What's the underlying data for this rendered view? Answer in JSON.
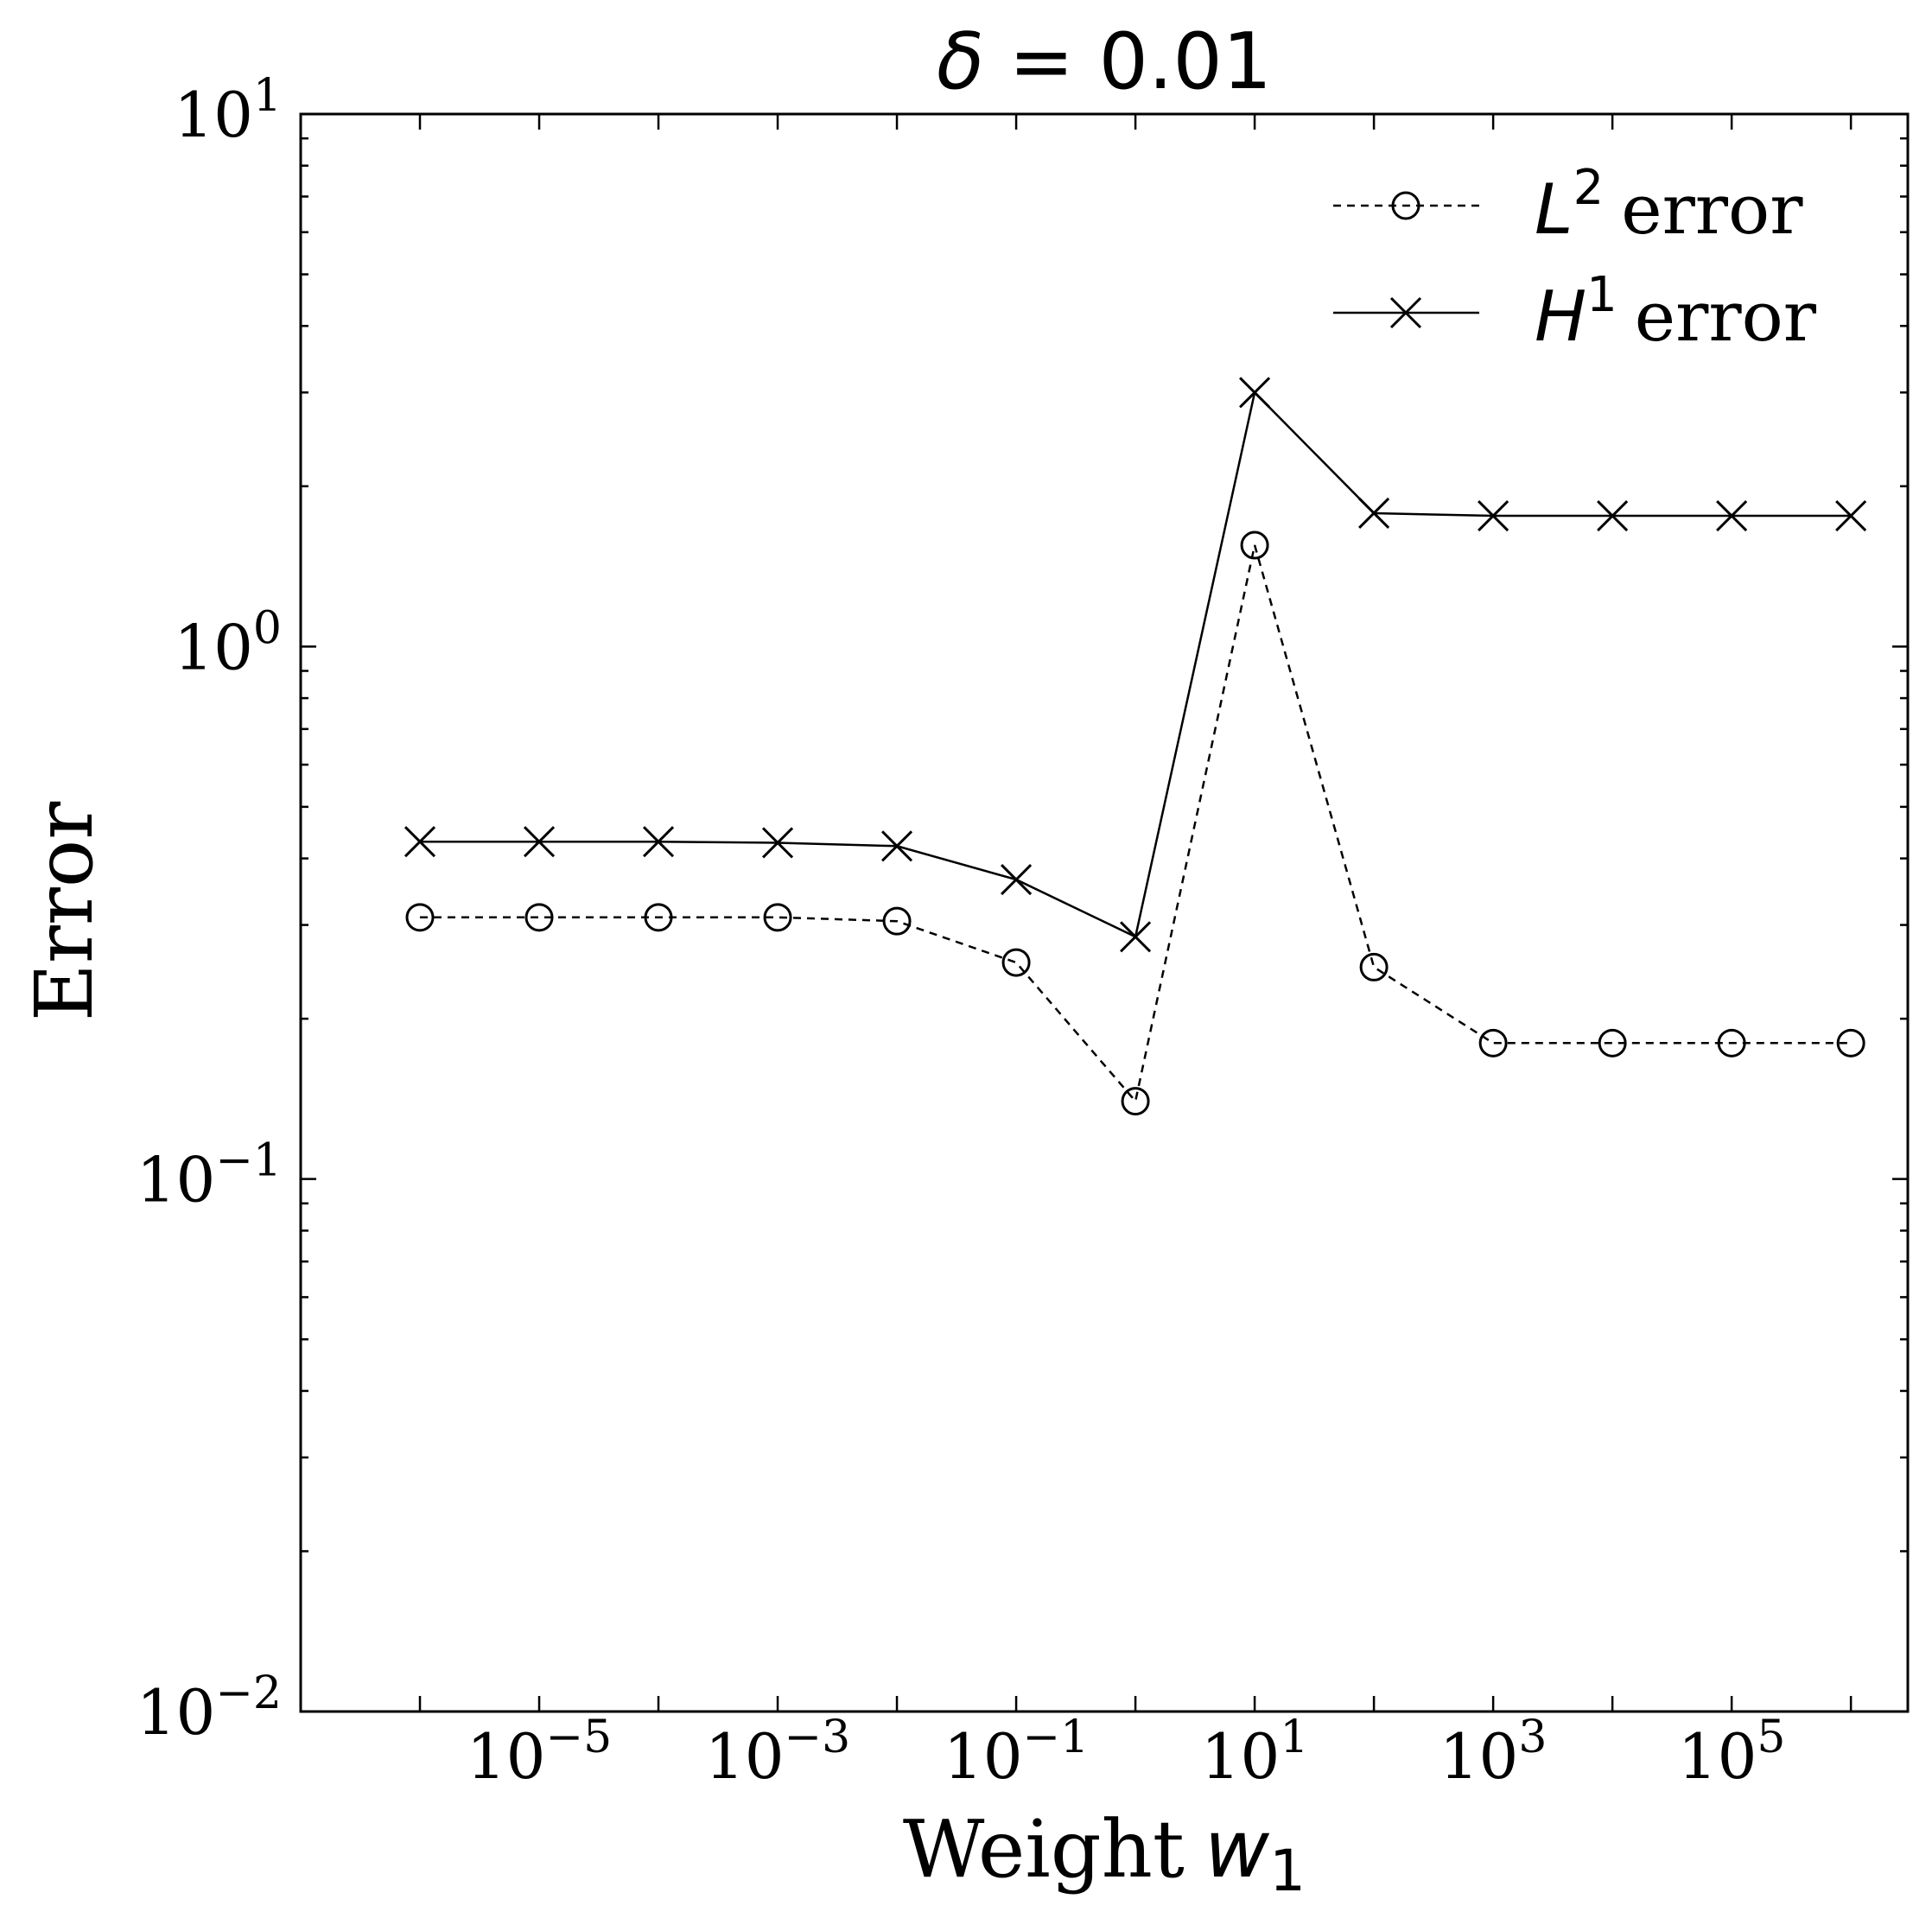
{
  "chart_data": {
    "type": "line",
    "title_prefix": "δ",
    "title_value": "0.01",
    "xlabel_prefix": "Weight",
    "xlabel_symbol": "w",
    "xlabel_subscript": "1",
    "ylabel": "Error",
    "x_scale": "log",
    "y_scale": "log",
    "xlim": [
      1e-07,
      3000000.0
    ],
    "ylim": [
      0.01,
      10
    ],
    "x_ticks": [
      {
        "base": "10",
        "exp": "−5",
        "value": 1e-05
      },
      {
        "base": "10",
        "exp": "−3",
        "value": 0.001
      },
      {
        "base": "10",
        "exp": "−1",
        "value": 0.1
      },
      {
        "base": "10",
        "exp": "1",
        "value": 10
      },
      {
        "base": "10",
        "exp": "3",
        "value": 1000
      },
      {
        "base": "10",
        "exp": "5",
        "value": 100000
      }
    ],
    "y_ticks": [
      {
        "base": "10",
        "exp": "−2",
        "value": 0.01
      },
      {
        "base": "10",
        "exp": "−1",
        "value": 0.1
      },
      {
        "base": "10",
        "exp": "0",
        "value": 1
      },
      {
        "base": "10",
        "exp": "1",
        "value": 10
      }
    ],
    "grid": false,
    "legend_position": "top-right",
    "x": [
      1e-06,
      1e-05,
      0.0001,
      0.001,
      0.01,
      0.1,
      1,
      10,
      100,
      1000,
      10000,
      100000,
      1000000
    ],
    "series": [
      {
        "name_symbol": "L",
        "name_sup": "2",
        "name_suffix": "error",
        "marker": "circle",
        "line_style": "dashed",
        "color": "#000000",
        "values": [
          0.31,
          0.31,
          0.31,
          0.31,
          0.305,
          0.255,
          0.14,
          1.55,
          0.25,
          0.18,
          0.18,
          0.18,
          0.18
        ]
      },
      {
        "name_symbol": "H",
        "name_sup": "1",
        "name_suffix": "error",
        "marker": "x",
        "line_style": "solid",
        "color": "#000000",
        "values": [
          0.43,
          0.43,
          0.43,
          0.428,
          0.422,
          0.365,
          0.285,
          3.0,
          1.78,
          1.76,
          1.76,
          1.76,
          1.76
        ]
      }
    ]
  }
}
